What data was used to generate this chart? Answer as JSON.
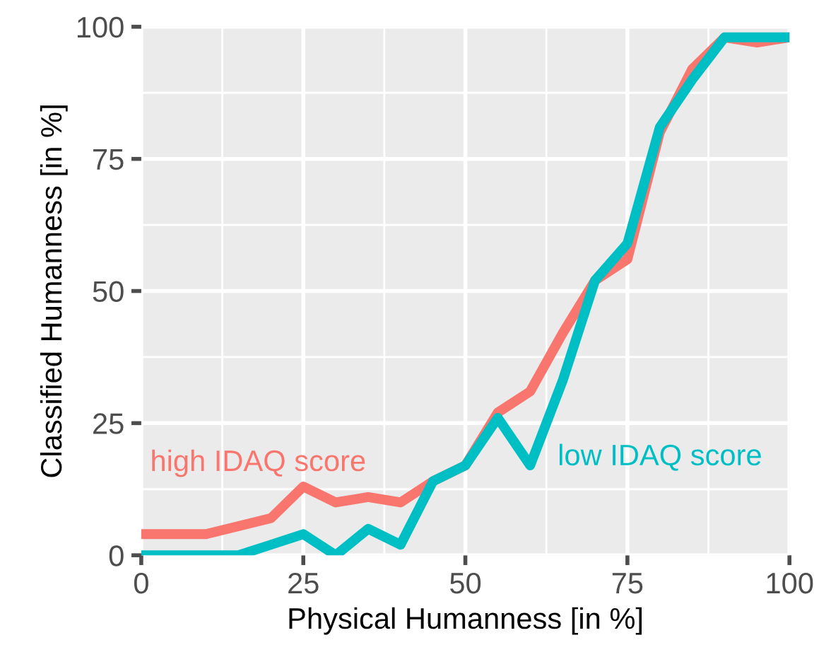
{
  "chart_data": {
    "type": "line",
    "xlabel": "Physical Humanness [in %]",
    "ylabel": "Classified Humanness [in %]",
    "x": [
      0,
      5,
      10,
      15,
      20,
      25,
      30,
      35,
      40,
      45,
      50,
      55,
      60,
      65,
      70,
      75,
      80,
      85,
      90,
      95,
      100
    ],
    "series": [
      {
        "name": "high IDAQ score",
        "color": "#f8766d",
        "values": [
          4,
          4,
          4,
          5.5,
          7,
          13,
          10,
          11,
          10,
          14,
          17,
          27,
          31,
          42,
          52,
          56,
          80,
          92,
          98,
          97,
          98
        ]
      },
      {
        "name": "low IDAQ score",
        "color": "#00bfc4",
        "values": [
          0,
          0,
          0,
          0,
          2,
          4,
          0,
          5,
          2,
          14,
          17,
          26,
          17,
          33,
          52,
          59,
          81,
          90,
          98,
          98,
          98
        ]
      }
    ],
    "xlim": [
      0,
      100
    ],
    "ylim": [
      0,
      100
    ],
    "xticks": [
      0,
      25,
      50,
      75,
      100
    ],
    "yticks": [
      0,
      25,
      50,
      75,
      100
    ],
    "grid": true,
    "legend": false,
    "line_style": "solid",
    "marker": "none"
  }
}
